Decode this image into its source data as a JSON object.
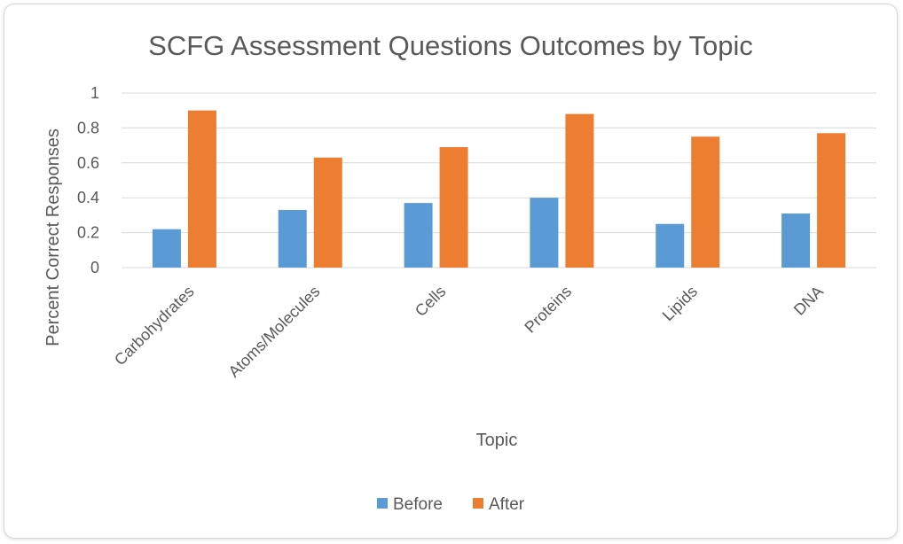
{
  "chart_data": {
    "type": "bar",
    "title": "SCFG Assessment Questions Outcomes by Topic",
    "xlabel": "Topic",
    "ylabel": "Percent Correct Responses",
    "categories": [
      "Carbohydrates",
      "Atoms/Molecules",
      "Cells",
      "Proteins",
      "Lipids",
      "DNA"
    ],
    "series": [
      {
        "name": "Before",
        "values": [
          0.22,
          0.33,
          0.37,
          0.4,
          0.25,
          0.31
        ],
        "color": "#5b9bd5"
      },
      {
        "name": "After",
        "values": [
          0.9,
          0.63,
          0.69,
          0.88,
          0.75,
          0.77
        ],
        "color": "#ed7d31"
      }
    ],
    "ylim": [
      0,
      1
    ],
    "yticks": [
      "0",
      "0.2",
      "0.4",
      "0.6",
      "0.8",
      "1"
    ],
    "grid": true,
    "legend": "bottom-center"
  }
}
